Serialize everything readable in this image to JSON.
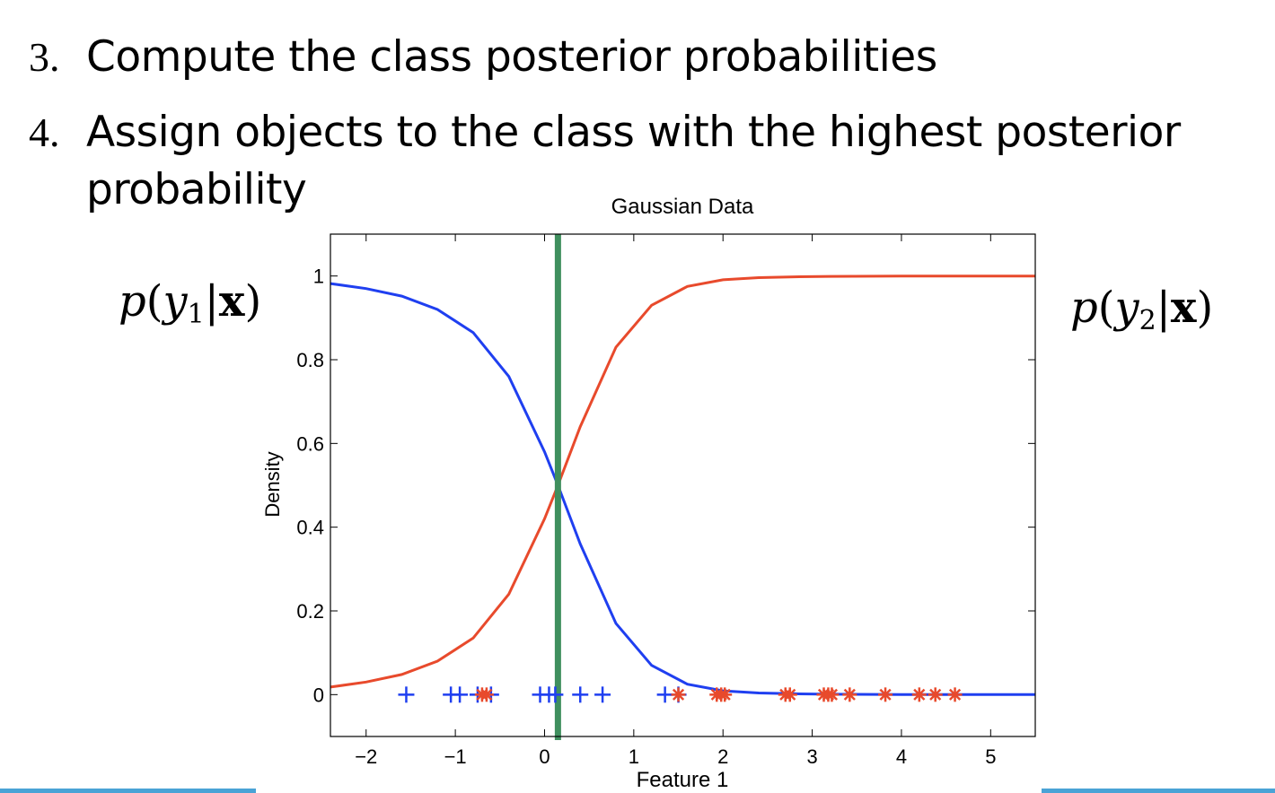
{
  "slide": {
    "item3_number": "3.",
    "item3_text": "Compute the class posterior probabilities",
    "item4_number": "4.",
    "item4_text": "Assign objects to the class with the highest posterior",
    "item4_text_cont": "probability",
    "label_left": {
      "p": "p",
      "y": "y",
      "sub": "1",
      "x": "x"
    },
    "label_right": {
      "p": "p",
      "y": "y",
      "sub": "2",
      "x": "x"
    }
  },
  "colors": {
    "class1": "#1f3ff0",
    "class2": "#e84a2c",
    "boundary": "#3f8f5e",
    "accent_line": "#4aa3d6"
  },
  "chart_data": {
    "type": "line",
    "title": "Gaussian Data",
    "xlabel": "Feature 1",
    "ylabel": "Density",
    "xlim": [
      -2.4,
      5.5
    ],
    "ylim": [
      -0.1,
      1.1
    ],
    "xticks": [
      -2,
      -1,
      0,
      1,
      2,
      3,
      4,
      5
    ],
    "xtick_labels": [
      "−2",
      "−1",
      "0",
      "1",
      "2",
      "3",
      "4",
      "5"
    ],
    "yticks": [
      0,
      0.2,
      0.4,
      0.6,
      0.8,
      1
    ],
    "ytick_labels": [
      "0",
      "0.2",
      "0.4",
      "0.6",
      "0.8",
      "1"
    ],
    "decision_boundary_x": 0.15,
    "series": [
      {
        "color": "#1f3ff0",
        "x": [
          -2.4,
          -2.0,
          -1.6,
          -1.2,
          -0.8,
          -0.4,
          0.0,
          0.15,
          0.4,
          0.8,
          1.2,
          1.6,
          2.0,
          2.4,
          2.8,
          3.2,
          4.0,
          5.5
        ],
        "y": [
          0.982,
          0.97,
          0.952,
          0.92,
          0.865,
          0.76,
          0.58,
          0.5,
          0.36,
          0.17,
          0.07,
          0.025,
          0.009,
          0.004,
          0.002,
          0.001,
          0.0,
          0.0
        ]
      },
      {
        "color": "#e84a2c",
        "x": [
          -2.4,
          -2.0,
          -1.6,
          -1.2,
          -0.8,
          -0.4,
          0.0,
          0.15,
          0.4,
          0.8,
          1.2,
          1.6,
          2.0,
          2.4,
          2.8,
          3.2,
          4.0,
          5.5
        ],
        "y": [
          0.018,
          0.03,
          0.048,
          0.08,
          0.135,
          0.24,
          0.42,
          0.5,
          0.64,
          0.83,
          0.93,
          0.975,
          0.991,
          0.996,
          0.998,
          0.999,
          1.0,
          1.0
        ]
      }
    ],
    "points_class1_plus": [
      -1.55,
      -1.05,
      -0.95,
      -0.75,
      -0.6,
      -0.05,
      0.05,
      0.12,
      0.4,
      0.65,
      1.35,
      1.5
    ],
    "points_class2_star": [
      -0.7,
      -0.65,
      1.5,
      1.93,
      1.98,
      2.02,
      2.7,
      2.75,
      3.13,
      3.18,
      3.22,
      3.42,
      3.82,
      4.2,
      4.38,
      4.6
    ]
  }
}
